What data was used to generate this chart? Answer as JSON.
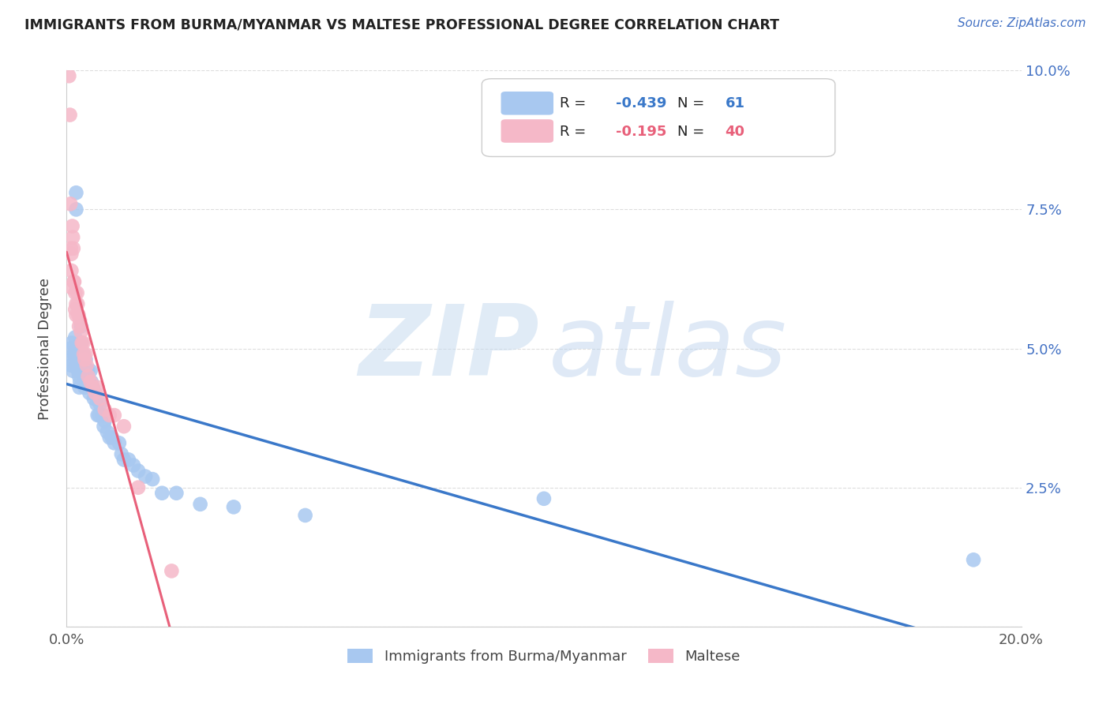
{
  "title": "IMMIGRANTS FROM BURMA/MYANMAR VS MALTESE PROFESSIONAL DEGREE CORRELATION CHART",
  "source": "Source: ZipAtlas.com",
  "ylabel": "Professional Degree",
  "x_min": 0.0,
  "x_max": 0.2,
  "y_min": 0.0,
  "y_max": 0.1,
  "blue_R": "-0.439",
  "blue_N": "61",
  "pink_R": "-0.195",
  "pink_N": "40",
  "blue_color": "#A8C8F0",
  "pink_color": "#F5B8C8",
  "blue_line_color": "#3A78C9",
  "pink_line_color": "#E8607A",
  "legend_label_blue": "Immigrants from Burma/Myanmar",
  "legend_label_pink": "Maltese",
  "blue_points_x": [
    0.0008,
    0.0009,
    0.001,
    0.0011,
    0.0013,
    0.0015,
    0.0018,
    0.0018,
    0.002,
    0.002,
    0.0022,
    0.0022,
    0.0024,
    0.0025,
    0.0026,
    0.0027,
    0.0028,
    0.003,
    0.003,
    0.0032,
    0.0033,
    0.0035,
    0.0036,
    0.0038,
    0.004,
    0.0042,
    0.0043,
    0.0045,
    0.0046,
    0.0048,
    0.005,
    0.0052,
    0.0055,
    0.0057,
    0.006,
    0.0063,
    0.0065,
    0.0068,
    0.007,
    0.0075,
    0.0078,
    0.008,
    0.0085,
    0.009,
    0.0095,
    0.01,
    0.011,
    0.0115,
    0.012,
    0.013,
    0.014,
    0.015,
    0.0165,
    0.018,
    0.02,
    0.023,
    0.028,
    0.035,
    0.05,
    0.1,
    0.19
  ],
  "blue_points_y": [
    0.05,
    0.047,
    0.048,
    0.051,
    0.046,
    0.049,
    0.052,
    0.049,
    0.078,
    0.075,
    0.05,
    0.047,
    0.046,
    0.049,
    0.045,
    0.043,
    0.044,
    0.054,
    0.051,
    0.048,
    0.046,
    0.049,
    0.045,
    0.043,
    0.048,
    0.046,
    0.044,
    0.046,
    0.044,
    0.042,
    0.046,
    0.044,
    0.043,
    0.041,
    0.042,
    0.04,
    0.038,
    0.038,
    0.04,
    0.038,
    0.036,
    0.037,
    0.035,
    0.034,
    0.034,
    0.033,
    0.033,
    0.031,
    0.03,
    0.03,
    0.029,
    0.028,
    0.027,
    0.0265,
    0.024,
    0.024,
    0.022,
    0.0215,
    0.02,
    0.023,
    0.012
  ],
  "pink_points_x": [
    0.0005,
    0.0007,
    0.0008,
    0.0009,
    0.001,
    0.001,
    0.001,
    0.0012,
    0.0013,
    0.0014,
    0.0015,
    0.0016,
    0.0018,
    0.0018,
    0.002,
    0.002,
    0.0022,
    0.0023,
    0.0025,
    0.0026,
    0.0028,
    0.003,
    0.0032,
    0.0035,
    0.0036,
    0.0038,
    0.004,
    0.0042,
    0.0045,
    0.005,
    0.0055,
    0.006,
    0.0065,
    0.007,
    0.008,
    0.009,
    0.01,
    0.012,
    0.015,
    0.022
  ],
  "pink_points_y": [
    0.099,
    0.092,
    0.076,
    0.068,
    0.067,
    0.064,
    0.061,
    0.072,
    0.07,
    0.068,
    0.062,
    0.062,
    0.06,
    0.057,
    0.058,
    0.056,
    0.06,
    0.058,
    0.056,
    0.054,
    0.055,
    0.053,
    0.051,
    0.051,
    0.049,
    0.048,
    0.049,
    0.047,
    0.045,
    0.044,
    0.043,
    0.042,
    0.043,
    0.041,
    0.039,
    0.038,
    0.038,
    0.036,
    0.025,
    0.01
  ]
}
